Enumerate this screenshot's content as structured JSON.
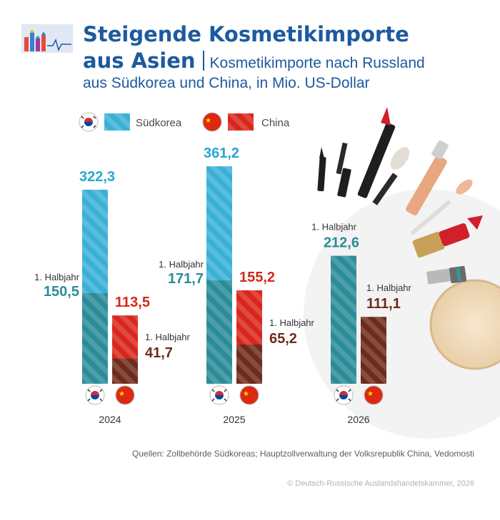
{
  "title": {
    "line1": "Steigende Kosmetikimporte",
    "line2": "aus Asien",
    "subtitle_line1": "Kosmetikimporte nach Russland",
    "subtitle_line2": "aus Südkorea und China, in Mio. US-Dollar"
  },
  "colors": {
    "korea_total": "#3ab0d6",
    "korea_half": "#2b8c99",
    "china_total": "#d9261c",
    "china_half": "#6e2b1c",
    "title": "#1d5a9e"
  },
  "chart_data": {
    "type": "bar",
    "categories": [
      "2024",
      "2025",
      "2026"
    ],
    "legend": [
      {
        "name": "Südkorea",
        "icon": "south-korea-flag-icon",
        "color": "#3ab0d6"
      },
      {
        "name": "China",
        "icon": "china-flag-icon",
        "color": "#d9261c"
      }
    ],
    "half_label": "1. Halbjahr",
    "series": [
      {
        "name": "Südkorea",
        "total_labels": [
          "322,3",
          "361,2",
          ""
        ],
        "totals": [
          322.3,
          361.2,
          null
        ],
        "half_labels": [
          "150,5",
          "171,7",
          "212,6"
        ],
        "halves": [
          150.5,
          171.7,
          212.6
        ]
      },
      {
        "name": "China",
        "total_labels": [
          "113,5",
          "155,2",
          ""
        ],
        "totals": [
          113.5,
          155.2,
          null
        ],
        "half_labels": [
          "41,7",
          "65,2",
          "111,1"
        ],
        "halves": [
          41.7,
          65.2,
          111.1
        ]
      }
    ],
    "ylim": [
      0,
      400
    ],
    "grid": false
  },
  "source": "Quellen: Zollbehörde Südkoreas; Hauptzollverwaltung der Volksrepublik China, Vedomosti",
  "copyright": "© Deutsch-Russische Auslandshandelskammer, 2026"
}
